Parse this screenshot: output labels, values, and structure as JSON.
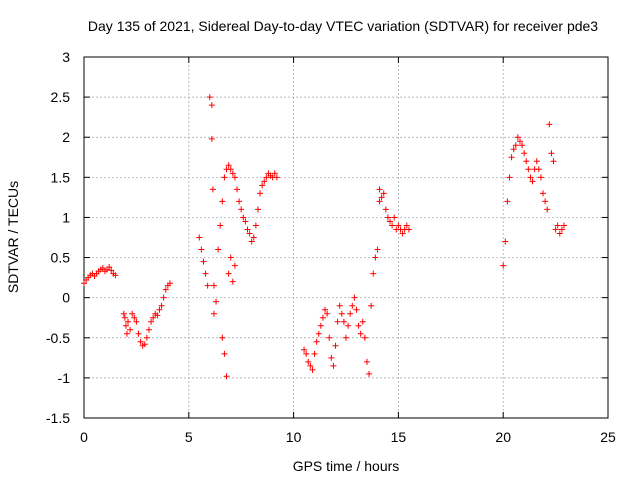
{
  "chart_data": {
    "type": "scatter",
    "title": "Day 135 of 2021, Sidereal Day-to-day VTEC variation (SDTVAR) for receiver pde3",
    "xlabel": "GPS time / hours",
    "ylabel": "SDTVAR / TECUs",
    "xlim": [
      0,
      25
    ],
    "ylim": [
      -1.5,
      3
    ],
    "xticks": [
      0,
      5,
      10,
      15,
      20,
      25
    ],
    "xtick_labels": [
      "0",
      "5",
      "10",
      "15",
      "20",
      "25"
    ],
    "yticks": [
      -1.5,
      -1,
      -0.5,
      0,
      0.5,
      1,
      1.5,
      2,
      2.5,
      3
    ],
    "ytick_labels": [
      "-1.5",
      "-1",
      "-0.5",
      "0",
      "0.5",
      "1",
      "1.5",
      "2",
      "2.5",
      "3"
    ],
    "grid": true,
    "marker": "+",
    "color": "#ff0000",
    "series": [
      {
        "name": "SDTVAR",
        "x": [
          0.0,
          0.1,
          0.2,
          0.3,
          0.4,
          0.5,
          0.6,
          0.7,
          0.8,
          0.9,
          1.0,
          1.1,
          1.2,
          1.3,
          1.4,
          1.5,
          1.9,
          1.95,
          2.0,
          2.05,
          2.1,
          2.2,
          2.3,
          2.4,
          2.5,
          2.6,
          2.7,
          2.8,
          2.9,
          3.0,
          3.1,
          3.2,
          3.3,
          3.4,
          3.5,
          3.6,
          3.7,
          3.8,
          3.9,
          4.0,
          4.1,
          5.5,
          5.6,
          5.7,
          5.8,
          5.9,
          6.0,
          6.1,
          6.1,
          6.15,
          6.2,
          6.2,
          6.3,
          6.4,
          6.5,
          6.6,
          6.6,
          6.7,
          6.7,
          6.8,
          6.8,
          6.9,
          6.9,
          7.0,
          7.0,
          7.1,
          7.1,
          7.2,
          7.2,
          7.3,
          7.4,
          7.5,
          7.6,
          7.7,
          7.8,
          7.9,
          8.0,
          8.1,
          8.2,
          8.3,
          8.4,
          8.5,
          8.6,
          8.7,
          8.8,
          8.9,
          9.0,
          9.1,
          9.2,
          10.5,
          10.6,
          10.7,
          10.8,
          10.9,
          11.0,
          11.1,
          11.2,
          11.3,
          11.4,
          11.5,
          11.6,
          11.7,
          11.8,
          11.9,
          12.0,
          12.1,
          12.2,
          12.3,
          12.4,
          12.5,
          12.6,
          12.7,
          12.8,
          12.9,
          13.0,
          13.1,
          13.2,
          13.3,
          13.4,
          13.5,
          13.6,
          13.7,
          13.8,
          13.9,
          14.0,
          14.1,
          14.1,
          14.2,
          14.3,
          14.4,
          14.5,
          14.6,
          14.7,
          14.8,
          14.9,
          15.0,
          15.1,
          15.2,
          15.3,
          15.4,
          15.5,
          20.0,
          20.1,
          20.2,
          20.3,
          20.4,
          20.5,
          20.6,
          20.7,
          20.8,
          20.9,
          21.0,
          21.1,
          21.2,
          21.3,
          21.4,
          21.5,
          21.6,
          21.7,
          21.8,
          21.9,
          22.0,
          22.1,
          22.2,
          22.3,
          22.4,
          22.5,
          22.6,
          22.7,
          22.8,
          22.9
        ],
        "y": [
          0.18,
          0.22,
          0.25,
          0.28,
          0.3,
          0.27,
          0.3,
          0.33,
          0.35,
          0.37,
          0.33,
          0.35,
          0.38,
          0.34,
          0.3,
          0.28,
          -0.2,
          -0.25,
          -0.35,
          -0.45,
          -0.3,
          -0.4,
          -0.2,
          -0.25,
          -0.3,
          -0.45,
          -0.55,
          -0.6,
          -0.58,
          -0.5,
          -0.4,
          -0.3,
          -0.25,
          -0.2,
          -0.22,
          -0.15,
          -0.1,
          0.0,
          0.1,
          0.15,
          0.18,
          0.75,
          0.6,
          0.45,
          0.3,
          0.15,
          2.5,
          2.4,
          1.98,
          1.35,
          0.15,
          -0.2,
          -0.05,
          0.6,
          0.9,
          1.2,
          -0.5,
          1.5,
          -0.7,
          1.6,
          -0.98,
          1.65,
          0.3,
          1.6,
          0.5,
          1.55,
          0.2,
          1.5,
          0.4,
          1.35,
          1.2,
          1.1,
          1.0,
          0.95,
          0.85,
          0.8,
          0.7,
          0.75,
          0.9,
          1.1,
          1.3,
          1.4,
          1.45,
          1.5,
          1.55,
          1.52,
          1.5,
          1.55,
          1.5,
          -0.65,
          -0.7,
          -0.8,
          -0.85,
          -0.9,
          -0.7,
          -0.55,
          -0.45,
          -0.35,
          -0.25,
          -0.15,
          -0.2,
          -0.5,
          -0.75,
          -0.85,
          -0.6,
          -0.3,
          -0.1,
          -0.2,
          -0.3,
          -0.5,
          -0.35,
          -0.2,
          -0.1,
          0.0,
          -0.15,
          -0.35,
          -0.45,
          -0.3,
          -0.5,
          -0.8,
          -0.95,
          -0.1,
          0.3,
          0.5,
          0.6,
          1.35,
          1.2,
          1.25,
          1.3,
          1.1,
          1.0,
          0.95,
          0.9,
          1.0,
          0.85,
          0.9,
          0.85,
          0.8,
          0.85,
          0.9,
          0.85,
          0.4,
          0.7,
          1.2,
          1.5,
          1.75,
          1.85,
          1.9,
          2.0,
          1.95,
          1.9,
          1.8,
          1.7,
          1.6,
          1.5,
          1.45,
          1.6,
          1.7,
          1.6,
          1.5,
          1.3,
          1.2,
          1.1,
          2.16,
          1.8,
          1.7,
          0.85,
          0.9,
          0.8,
          0.85,
          0.9
        ]
      }
    ]
  }
}
